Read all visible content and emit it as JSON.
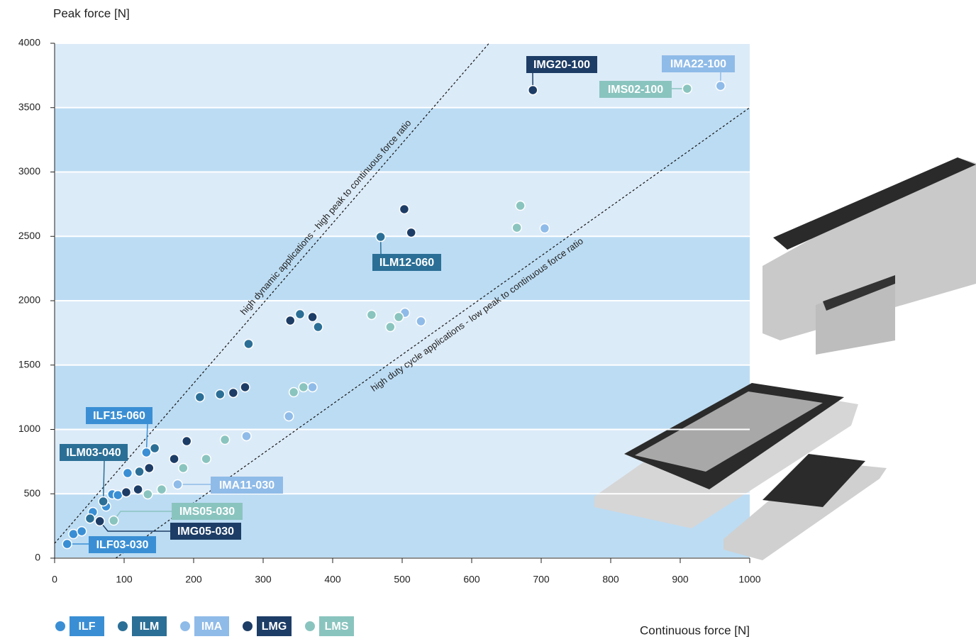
{
  "chart_data": {
    "type": "scatter",
    "ylabel": "Peak force [N]",
    "xlabel": "Continuous force [N]",
    "xlim": [
      0,
      1000
    ],
    "ylim": [
      0,
      4000
    ],
    "xticks": [
      0,
      100,
      200,
      300,
      400,
      500,
      600,
      700,
      800,
      900,
      1000
    ],
    "yticks": [
      0,
      500,
      1000,
      1500,
      2000,
      2500,
      3000,
      3500,
      4000
    ],
    "grid": true,
    "band_colors": [
      "#bcdcf3",
      "#dcebf8"
    ],
    "series": [
      {
        "name": "ILF",
        "color": "#3a8fd4",
        "x": [
          18,
          27,
          39,
          55,
          74,
          83,
          91,
          105,
          132
        ],
        "y": [
          110,
          187,
          209,
          358,
          402,
          496,
          490,
          661,
          821
        ]
      },
      {
        "name": "ILM",
        "color": "#2b6f96",
        "x": [
          51,
          70,
          122,
          144,
          209,
          238,
          279,
          353,
          379,
          469
        ],
        "y": [
          308,
          441,
          672,
          854,
          1251,
          1273,
          1664,
          1895,
          1796,
          2496
        ]
      },
      {
        "name": "IMA",
        "color": "#8fbbe8",
        "x": [
          177,
          276,
          337,
          371,
          504,
          527,
          705,
          958
        ],
        "y": [
          573,
          948,
          1102,
          1328,
          1906,
          1840,
          2562,
          3669
        ]
      },
      {
        "name": "LMG",
        "color": "#1d3d66",
        "x": [
          65,
          103,
          120,
          136,
          172,
          190,
          257,
          274,
          339,
          371,
          503,
          513,
          688
        ],
        "y": [
          287,
          512,
          534,
          700,
          771,
          909,
          1284,
          1328,
          1846,
          1873,
          2711,
          2529,
          3636
        ]
      },
      {
        "name": "LMS",
        "color": "#8ac4bf",
        "x": [
          85,
          134,
          154,
          185,
          218,
          245,
          344,
          358,
          456,
          483,
          495,
          665,
          670,
          910
        ],
        "y": [
          292,
          496,
          534,
          700,
          771,
          920,
          1289,
          1328,
          1890,
          1796,
          1873,
          2567,
          2738,
          3647
        ]
      }
    ],
    "guides": [
      {
        "label": "high dynamic applications - high peak to continuous force ratio",
        "x": [
          0,
          625
        ],
        "y": [
          115,
          4000
        ]
      },
      {
        "label": "high duty cycle applications - low peak to continuous force ratio",
        "x": [
          88,
          1000
        ],
        "y": [
          0,
          3500
        ]
      }
    ],
    "callouts": [
      {
        "text": "IMG20-100"
      },
      {
        "text": "IMA22-100"
      },
      {
        "text": "IMS02-100"
      },
      {
        "text": "ILM12-060"
      },
      {
        "text": "ILF15-060"
      },
      {
        "text": "ILM03-040"
      },
      {
        "text": "IMA11-030"
      },
      {
        "text": "IMS05-030"
      },
      {
        "text": "IMG05-030"
      },
      {
        "text": "ILF03-030"
      }
    ]
  }
}
